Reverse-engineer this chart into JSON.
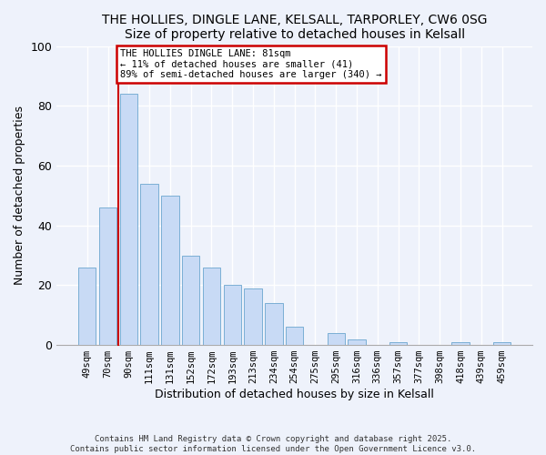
{
  "title": "THE HOLLIES, DINGLE LANE, KELSALL, TARPORLEY, CW6 0SG",
  "subtitle": "Size of property relative to detached houses in Kelsall",
  "xlabel": "Distribution of detached houses by size in Kelsall",
  "ylabel": "Number of detached properties",
  "bar_color": "#c8daf5",
  "bar_edge_color": "#7bafd4",
  "categories": [
    "49sqm",
    "70sqm",
    "90sqm",
    "111sqm",
    "131sqm",
    "152sqm",
    "172sqm",
    "193sqm",
    "213sqm",
    "234sqm",
    "254sqm",
    "275sqm",
    "295sqm",
    "316sqm",
    "336sqm",
    "357sqm",
    "377sqm",
    "398sqm",
    "418sqm",
    "439sqm",
    "459sqm"
  ],
  "values": [
    26,
    46,
    84,
    54,
    50,
    30,
    26,
    20,
    19,
    14,
    6,
    0,
    4,
    2,
    0,
    1,
    0,
    0,
    1,
    0,
    1
  ],
  "ylim": [
    0,
    100
  ],
  "yticks": [
    0,
    20,
    40,
    60,
    80,
    100
  ],
  "property_line_x": 1.5,
  "annotation_text": "THE HOLLIES DINGLE LANE: 81sqm\n← 11% of detached houses are smaller (41)\n89% of semi-detached houses are larger (340) →",
  "annotation_box_color": "#ffffff",
  "annotation_box_edge_color": "#cc0000",
  "property_line_color": "#cc0000",
  "background_color": "#eef2fb",
  "grid_color": "#ffffff",
  "footer1": "Contains HM Land Registry data © Crown copyright and database right 2025.",
  "footer2": "Contains public sector information licensed under the Open Government Licence v3.0."
}
